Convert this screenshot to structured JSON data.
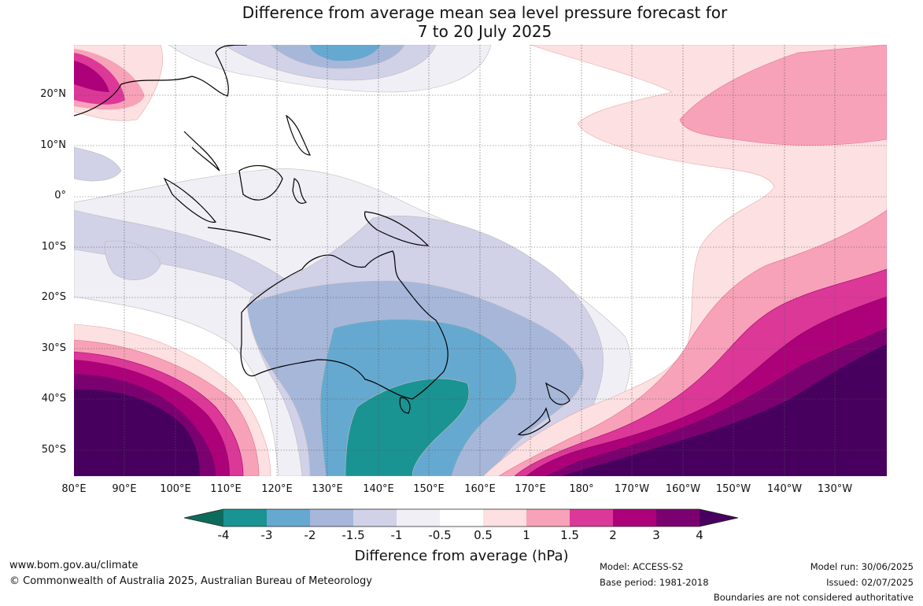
{
  "title": {
    "line1": "Difference from average mean sea level pressure forecast for",
    "line2": "7 to 20 July 2025"
  },
  "lat_labels": [
    "20°N",
    "10°N",
    "0°",
    "10°S",
    "20°S",
    "30°S",
    "40°S",
    "50°S"
  ],
  "lon_labels": [
    "80°E",
    "90°E",
    "100°E",
    "110°E",
    "120°E",
    "130°E",
    "140°E",
    "150°E",
    "160°E",
    "170°E",
    "180°",
    "170°W",
    "160°W",
    "150°W",
    "140°W",
    "130°W"
  ],
  "legend": {
    "ticks": [
      "-4",
      "-3",
      "-2",
      "-1.5",
      "-1",
      "-0.5",
      "0.5",
      "1",
      "1.5",
      "2",
      "3",
      "4"
    ],
    "colors": [
      "#0d6b5c",
      "#1a9393",
      "#66a9d0",
      "#a6b7da",
      "#d1d1e8",
      "#f1eff6",
      "#ffffff",
      "#fde0e1",
      "#f7a2b8",
      "#dc3898",
      "#ac0179",
      "#7b0170",
      "#48005f"
    ],
    "title": "Difference from average (hPa)"
  },
  "footer": {
    "website": "www.bom.gov.au/climate",
    "copyright": "© Commonwealth of Australia 2025, Australian Bureau of Meteorology",
    "model": "Model: ACCESS-S2",
    "base_period": "Base period: 1981-2018",
    "model_run": "Model run: 30/06/2025",
    "issued": "Issued: 02/07/2025",
    "disclaimer": "Boundaries are not considered authoritative"
  }
}
